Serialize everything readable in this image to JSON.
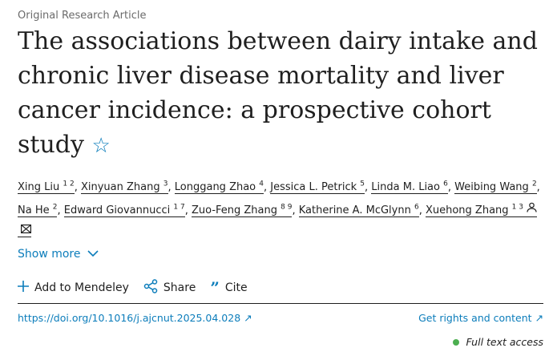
{
  "article_type": "Original Research Article",
  "title": "The associations between dairy intake and chronic liver disease mortality and liver cancer incidence: a prospective cohort study",
  "authors": [
    {
      "name": "Xing Liu",
      "sup": "1 2"
    },
    {
      "name": "Xinyuan Zhang",
      "sup": "3"
    },
    {
      "name": "Longgang Zhao",
      "sup": "4"
    },
    {
      "name": "Jessica L. Petrick",
      "sup": "5"
    },
    {
      "name": "Linda M. Liao",
      "sup": "6"
    },
    {
      "name": "Weibing Wang",
      "sup": "2"
    },
    {
      "name": "Na He",
      "sup": "2"
    },
    {
      "name": "Edward Giovannucci",
      "sup": "1 7"
    },
    {
      "name": "Zuo-Feng Zhang",
      "sup": "8 9"
    },
    {
      "name": "Katherine A. McGlynn",
      "sup": "6"
    },
    {
      "name": "Xuehong Zhang",
      "sup": "1 3"
    }
  ],
  "show_more": "Show more",
  "actions": {
    "mendeley": "Add to Mendeley",
    "share": "Share",
    "cite": "Cite"
  },
  "doi": "https://doi.org/10.1016/j.ajcnut.2025.04.028",
  "rights": "Get rights and content",
  "access": "Full text access",
  "colors": {
    "link": "#0c7dbb",
    "access_dot": "#4caf50"
  }
}
